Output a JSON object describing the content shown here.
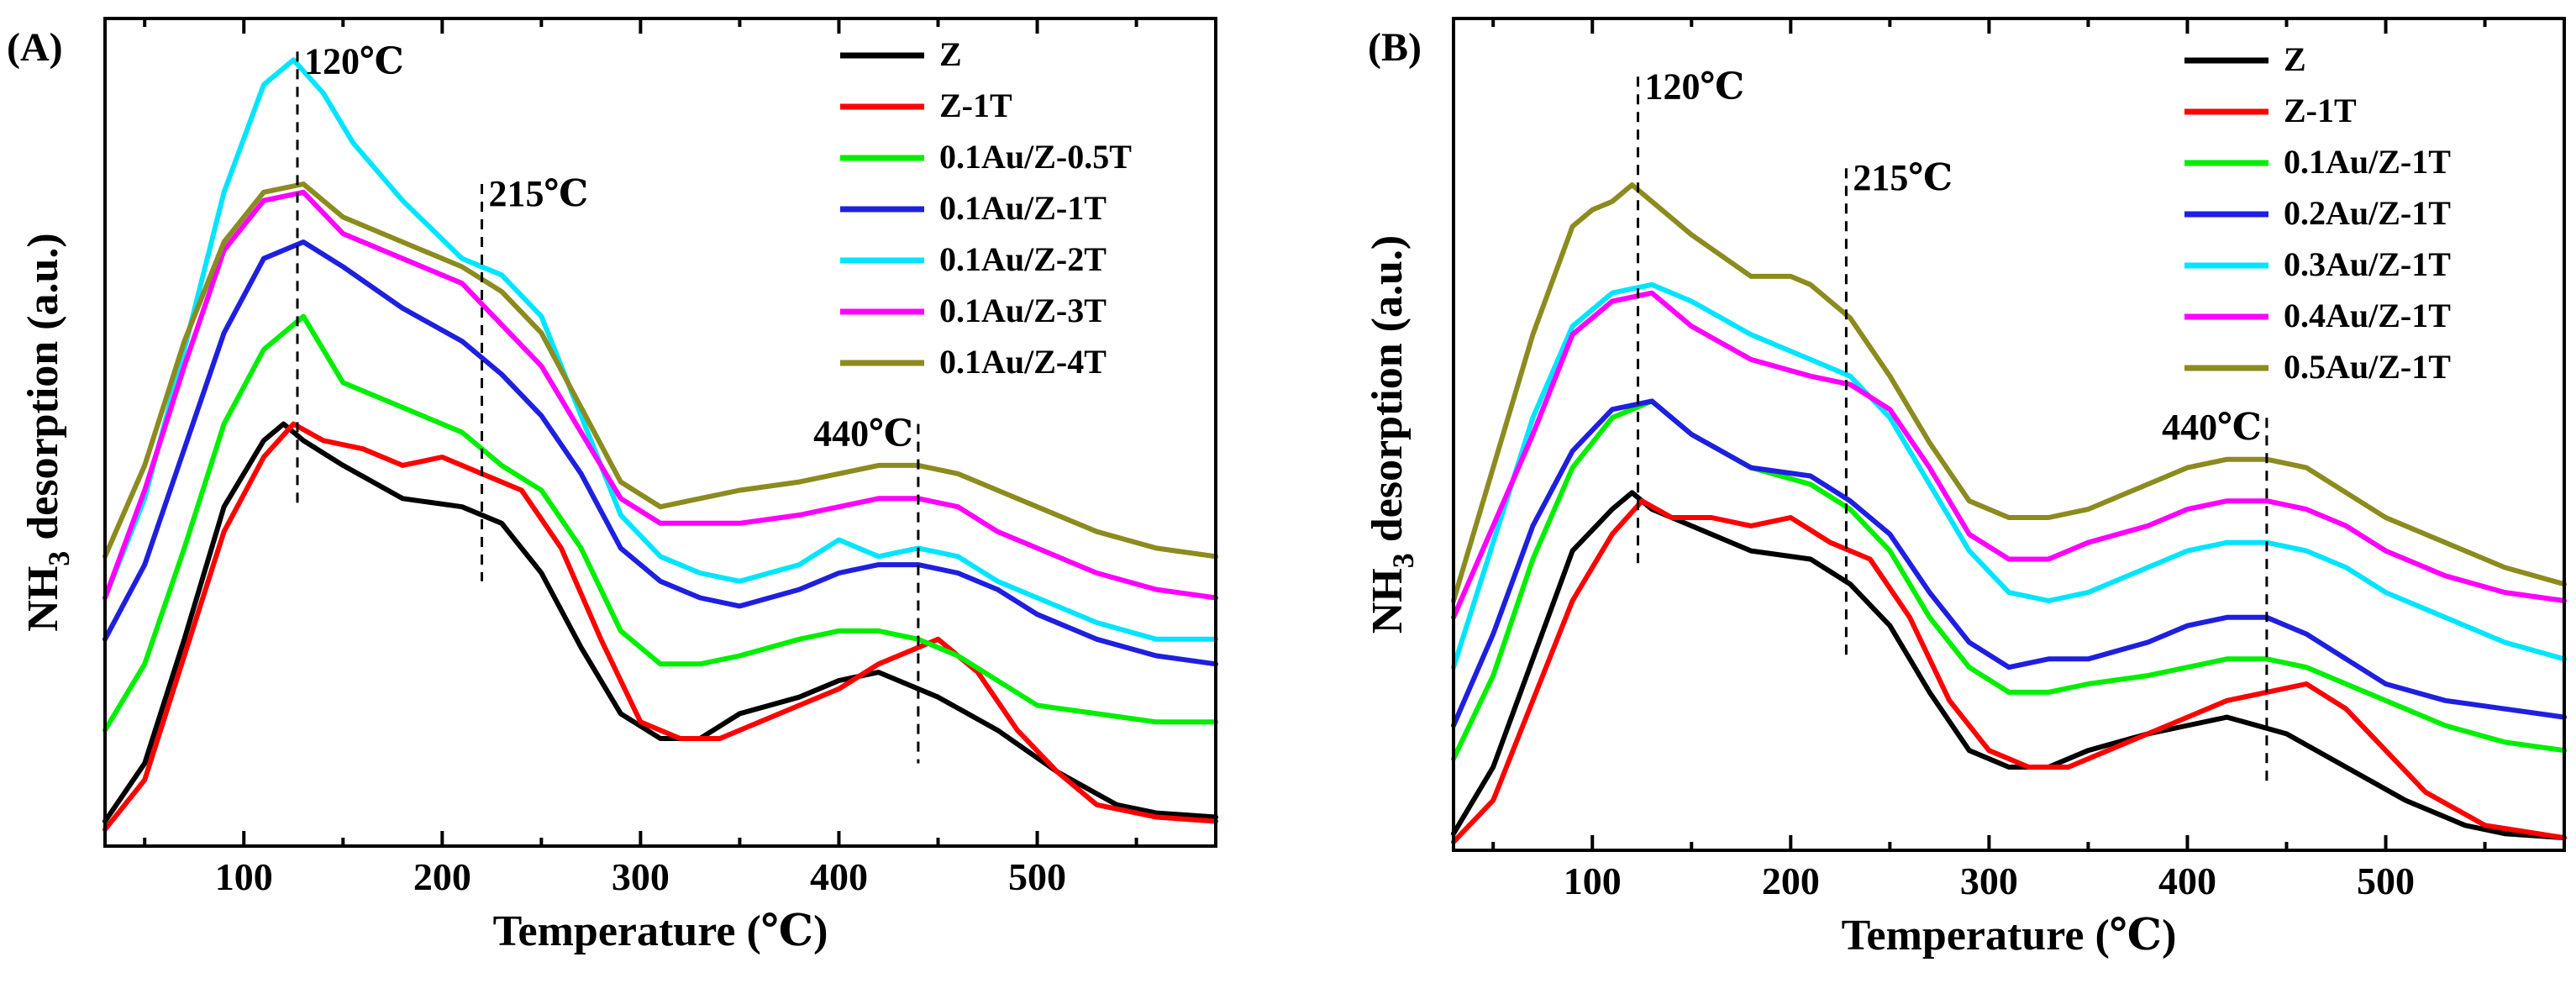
{
  "chart_data": [
    {
      "type": "line",
      "panel_label": "(A)",
      "xlabel": "Temperature (℃)",
      "ylabel_prefix": "NH",
      "ylabel_sub": "3",
      "ylabel_suffix": " desorption (a.u.)",
      "xlim": [
        30,
        590
      ],
      "ylim": [
        0,
        10
      ],
      "xticks": [
        100,
        200,
        300,
        400,
        500
      ],
      "xtick_labels": [
        "100",
        "200",
        "300",
        "400",
        "500"
      ],
      "legend_position": "top-right",
      "annotations": [
        {
          "label": "120℃",
          "x": 127,
          "y_top": 9.6,
          "y_bottom": 4.1
        },
        {
          "label": "215℃",
          "x": 220,
          "y_top": 8.0,
          "y_bottom": 3.2
        },
        {
          "label": "440℃",
          "x": 440,
          "y_top": 5.1,
          "y_bottom": 1.0
        }
      ],
      "series": [
        {
          "name": "Z",
          "color": "#000000",
          "x": [
            30,
            50,
            70,
            90,
            110,
            120,
            130,
            150,
            180,
            210,
            230,
            250,
            270,
            290,
            310,
            330,
            350,
            380,
            400,
            420,
            450,
            480,
            510,
            540,
            560,
            590
          ],
          "y": [
            0.3,
            1.0,
            2.5,
            4.1,
            4.9,
            5.1,
            4.9,
            4.6,
            4.2,
            4.1,
            3.9,
            3.3,
            2.4,
            1.6,
            1.3,
            1.3,
            1.6,
            1.8,
            2.0,
            2.1,
            1.8,
            1.4,
            0.9,
            0.5,
            0.4,
            0.35
          ]
        },
        {
          "name": "Z-1T",
          "color": "#ff0000",
          "x": [
            30,
            50,
            70,
            90,
            110,
            125,
            140,
            160,
            180,
            200,
            220,
            240,
            260,
            280,
            300,
            320,
            340,
            360,
            380,
            400,
            420,
            440,
            450,
            470,
            490,
            510,
            530,
            560,
            590
          ],
          "y": [
            0.2,
            0.8,
            2.3,
            3.8,
            4.7,
            5.1,
            4.9,
            4.8,
            4.6,
            4.7,
            4.5,
            4.3,
            3.6,
            2.5,
            1.5,
            1.3,
            1.3,
            1.5,
            1.7,
            1.9,
            2.2,
            2.4,
            2.5,
            2.1,
            1.4,
            0.9,
            0.5,
            0.35,
            0.3
          ]
        },
        {
          "name": "0.1Au/Z-0.5T",
          "color": "#00ee00",
          "x": [
            30,
            50,
            70,
            90,
            110,
            130,
            150,
            180,
            210,
            230,
            250,
            270,
            290,
            310,
            330,
            350,
            380,
            400,
            420,
            440,
            460,
            480,
            500,
            530,
            560,
            590
          ],
          "y": [
            1.4,
            2.2,
            3.6,
            5.1,
            6.0,
            6.4,
            5.6,
            5.3,
            5.0,
            4.6,
            4.3,
            3.6,
            2.6,
            2.2,
            2.2,
            2.3,
            2.5,
            2.6,
            2.6,
            2.5,
            2.3,
            2.0,
            1.7,
            1.6,
            1.5,
            1.5
          ]
        },
        {
          "name": "0.1Au/Z-1T",
          "color": "#1f1fe0",
          "x": [
            30,
            50,
            70,
            90,
            110,
            130,
            150,
            180,
            210,
            230,
            250,
            270,
            290,
            310,
            330,
            350,
            380,
            400,
            420,
            440,
            460,
            480,
            500,
            530,
            560,
            590
          ],
          "y": [
            2.5,
            3.4,
            4.8,
            6.2,
            7.1,
            7.3,
            7.0,
            6.5,
            6.1,
            5.7,
            5.2,
            4.5,
            3.6,
            3.2,
            3.0,
            2.9,
            3.1,
            3.3,
            3.4,
            3.4,
            3.3,
            3.1,
            2.8,
            2.5,
            2.3,
            2.2
          ]
        },
        {
          "name": "0.1Au/Z-2T",
          "color": "#00e5ff",
          "x": [
            30,
            50,
            70,
            90,
            110,
            125,
            140,
            155,
            180,
            210,
            230,
            250,
            270,
            290,
            310,
            330,
            350,
            380,
            400,
            420,
            440,
            460,
            480,
            500,
            530,
            560,
            590
          ],
          "y": [
            3.0,
            4.2,
            6.0,
            7.9,
            9.2,
            9.5,
            9.1,
            8.5,
            7.8,
            7.1,
            6.9,
            6.4,
            5.2,
            4.0,
            3.5,
            3.3,
            3.2,
            3.4,
            3.7,
            3.5,
            3.6,
            3.5,
            3.2,
            3.0,
            2.7,
            2.5,
            2.5
          ]
        },
        {
          "name": "0.1Au/Z-3T",
          "color": "#ff00ff",
          "x": [
            30,
            50,
            70,
            90,
            110,
            130,
            150,
            180,
            210,
            230,
            250,
            270,
            290,
            310,
            330,
            350,
            380,
            400,
            420,
            440,
            460,
            480,
            500,
            530,
            560,
            590
          ],
          "y": [
            3.0,
            4.3,
            5.8,
            7.2,
            7.8,
            7.9,
            7.4,
            7.1,
            6.8,
            6.3,
            5.8,
            5.0,
            4.2,
            3.9,
            3.9,
            3.9,
            4.0,
            4.1,
            4.2,
            4.2,
            4.1,
            3.8,
            3.6,
            3.3,
            3.1,
            3.0
          ]
        },
        {
          "name": "0.1Au/Z-4T",
          "color": "#8b8b1f",
          "x": [
            30,
            50,
            70,
            90,
            110,
            130,
            150,
            180,
            210,
            230,
            250,
            270,
            290,
            310,
            330,
            350,
            380,
            400,
            420,
            440,
            460,
            480,
            500,
            530,
            560,
            590
          ],
          "y": [
            3.5,
            4.6,
            6.1,
            7.3,
            7.9,
            8.0,
            7.6,
            7.3,
            7.0,
            6.7,
            6.2,
            5.3,
            4.4,
            4.1,
            4.2,
            4.3,
            4.4,
            4.5,
            4.6,
            4.6,
            4.5,
            4.3,
            4.1,
            3.8,
            3.6,
            3.5
          ]
        }
      ]
    },
    {
      "type": "line",
      "panel_label": "(B)",
      "xlabel": "Temperature (℃)",
      "ylabel_prefix": "NH",
      "ylabel_sub": "3",
      "ylabel_suffix": " desorption (a.u.)",
      "xlim": [
        30,
        590
      ],
      "ylim": [
        0,
        10
      ],
      "xticks": [
        100,
        200,
        300,
        400,
        500
      ],
      "xtick_labels": [
        "100",
        "200",
        "300",
        "400",
        "500"
      ],
      "legend_position": "top-right",
      "annotations": [
        {
          "label": "120℃",
          "x": 123,
          "y_top": 9.3,
          "y_bottom": 3.4
        },
        {
          "label": "215℃",
          "x": 228,
          "y_top": 8.2,
          "y_bottom": 2.3
        },
        {
          "label": "440℃",
          "x": 440,
          "y_top": 5.2,
          "y_bottom": 0.8
        }
      ],
      "series": [
        {
          "name": "Z",
          "color": "#000000",
          "x": [
            30,
            50,
            70,
            90,
            110,
            120,
            130,
            150,
            180,
            210,
            230,
            250,
            270,
            290,
            310,
            330,
            350,
            380,
            400,
            420,
            450,
            480,
            510,
            540,
            560,
            590
          ],
          "y": [
            0.2,
            1.0,
            2.3,
            3.6,
            4.1,
            4.3,
            4.1,
            3.9,
            3.6,
            3.5,
            3.2,
            2.7,
            1.9,
            1.2,
            1.0,
            1.0,
            1.2,
            1.4,
            1.5,
            1.6,
            1.4,
            1.0,
            0.6,
            0.3,
            0.2,
            0.15
          ]
        },
        {
          "name": "Z-1T",
          "color": "#ff0000",
          "x": [
            30,
            50,
            70,
            90,
            110,
            125,
            140,
            160,
            180,
            200,
            220,
            240,
            260,
            280,
            300,
            320,
            340,
            360,
            380,
            400,
            420,
            440,
            460,
            480,
            500,
            520,
            550,
            590
          ],
          "y": [
            0.1,
            0.6,
            1.8,
            3.0,
            3.8,
            4.2,
            4.0,
            4.0,
            3.9,
            4.0,
            3.7,
            3.5,
            2.8,
            1.8,
            1.2,
            1.0,
            1.0,
            1.2,
            1.4,
            1.6,
            1.8,
            1.9,
            2.0,
            1.7,
            1.2,
            0.7,
            0.3,
            0.15
          ]
        },
        {
          "name": "0.1Au/Z-1T",
          "color": "#00ee00",
          "x": [
            30,
            50,
            70,
            90,
            110,
            130,
            150,
            180,
            210,
            230,
            250,
            270,
            290,
            310,
            330,
            350,
            380,
            400,
            420,
            440,
            460,
            480,
            500,
            530,
            560,
            590
          ],
          "y": [
            1.1,
            2.1,
            3.5,
            4.6,
            5.2,
            5.4,
            5.0,
            4.6,
            4.4,
            4.1,
            3.6,
            2.8,
            2.2,
            1.9,
            1.9,
            2.0,
            2.1,
            2.2,
            2.3,
            2.3,
            2.2,
            2.0,
            1.8,
            1.5,
            1.3,
            1.2
          ]
        },
        {
          "name": "0.2Au/Z-1T",
          "color": "#1f1fe0",
          "x": [
            30,
            50,
            70,
            90,
            110,
            130,
            150,
            180,
            210,
            230,
            250,
            270,
            290,
            310,
            330,
            350,
            380,
            400,
            420,
            440,
            460,
            480,
            500,
            530,
            560,
            590
          ],
          "y": [
            1.5,
            2.6,
            3.9,
            4.8,
            5.3,
            5.4,
            5.0,
            4.6,
            4.5,
            4.2,
            3.8,
            3.1,
            2.5,
            2.2,
            2.3,
            2.3,
            2.5,
            2.7,
            2.8,
            2.8,
            2.6,
            2.3,
            2.0,
            1.8,
            1.7,
            1.6
          ]
        },
        {
          "name": "0.3Au/Z-1T",
          "color": "#00e5ff",
          "x": [
            30,
            50,
            70,
            90,
            110,
            130,
            150,
            180,
            210,
            230,
            250,
            270,
            290,
            310,
            330,
            350,
            380,
            400,
            420,
            440,
            460,
            480,
            500,
            530,
            560,
            590
          ],
          "y": [
            2.2,
            3.7,
            5.2,
            6.3,
            6.7,
            6.8,
            6.6,
            6.2,
            5.9,
            5.7,
            5.2,
            4.4,
            3.6,
            3.1,
            3.0,
            3.1,
            3.4,
            3.6,
            3.7,
            3.7,
            3.6,
            3.4,
            3.1,
            2.8,
            2.5,
            2.3
          ]
        },
        {
          "name": "0.4Au/Z-1T",
          "color": "#ff00ff",
          "x": [
            30,
            50,
            70,
            90,
            110,
            130,
            150,
            180,
            210,
            230,
            250,
            270,
            290,
            310,
            330,
            350,
            380,
            400,
            420,
            440,
            460,
            480,
            500,
            530,
            560,
            590
          ],
          "y": [
            2.8,
            3.9,
            5.0,
            6.2,
            6.6,
            6.7,
            6.3,
            5.9,
            5.7,
            5.6,
            5.3,
            4.6,
            3.8,
            3.5,
            3.5,
            3.7,
            3.9,
            4.1,
            4.2,
            4.2,
            4.1,
            3.9,
            3.6,
            3.3,
            3.1,
            3.0
          ]
        },
        {
          "name": "0.5Au/Z-1T",
          "color": "#8b8b1f",
          "x": [
            30,
            50,
            70,
            90,
            100,
            110,
            120,
            130,
            150,
            180,
            200,
            210,
            230,
            250,
            270,
            290,
            310,
            330,
            350,
            380,
            400,
            420,
            440,
            460,
            480,
            500,
            530,
            560,
            590
          ],
          "y": [
            3.0,
            4.6,
            6.2,
            7.5,
            7.7,
            7.8,
            8.0,
            7.8,
            7.4,
            6.9,
            6.9,
            6.8,
            6.4,
            5.7,
            4.9,
            4.2,
            4.0,
            4.0,
            4.1,
            4.4,
            4.6,
            4.7,
            4.7,
            4.6,
            4.3,
            4.0,
            3.7,
            3.4,
            3.2
          ]
        }
      ]
    }
  ]
}
